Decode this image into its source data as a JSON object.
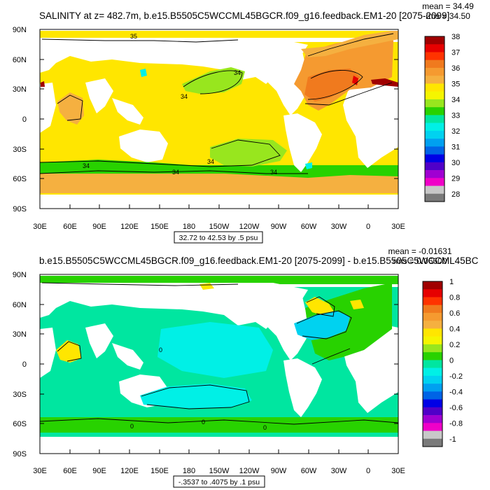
{
  "panels": [
    {
      "title": "SALINITY at z= 482.7m, b.e15.B5505C5WCCML45BGCR.f09_g16.feedback.EM1-20 [2075-2099]",
      "mean_label": "mean = 34.49",
      "rms_label": "rms = 34.50",
      "range_label": "32.72 to 42.53 by .5 psu",
      "colorbar": {
        "labels": [
          "38",
          "37",
          "36",
          "35",
          "34",
          "33",
          "32",
          "31",
          "30",
          "29",
          "28"
        ],
        "colors": [
          "#a00000",
          "#e60000",
          "#ff3300",
          "#f07a1e",
          "#f59a30",
          "#f5b040",
          "#ffe600",
          "#f5f500",
          "#98e61e",
          "#28d200",
          "#00e6a0",
          "#00f0e6",
          "#00d2f0",
          "#00a0f0",
          "#0064e6",
          "#0000e6",
          "#5000c8",
          "#a000d2",
          "#f000c8",
          "#c8c8c8",
          "#7a7a7a"
        ]
      },
      "contour_labels": [
        "35",
        "34",
        "34",
        "34",
        "34",
        "34",
        "34"
      ]
    },
    {
      "title": "b.e15.B5505C5WCCML45BGCR.f09_g16.feedback.EM1-20 [2075-2099] - b.e15.B5505C5WCCML45BC",
      "mean_label": "mean = -0.01631",
      "rms_label": "rms = 0.06600",
      "range_label": "-.3537 to .4075 by .1 psu",
      "colorbar": {
        "labels": [
          "1",
          "0.8",
          "0.6",
          "0.4",
          "0.2",
          "0",
          "-0.2",
          "-0.4",
          "-0.6",
          "-0.8",
          "-1"
        ],
        "colors": [
          "#a00000",
          "#e60000",
          "#ff3300",
          "#f07a1e",
          "#f59a30",
          "#f5b040",
          "#ffe600",
          "#f5f500",
          "#98e61e",
          "#28d200",
          "#00e6a0",
          "#00f0e6",
          "#00d2f0",
          "#00a0f0",
          "#0064e6",
          "#0000e6",
          "#5000c8",
          "#a000d2",
          "#f000c8",
          "#c8c8c8",
          "#7a7a7a"
        ]
      },
      "contour_labels": [
        "0",
        "0",
        "0",
        "0"
      ]
    }
  ],
  "lat_labels": [
    "90N",
    "60N",
    "30N",
    "0",
    "30S",
    "60S",
    "90S"
  ],
  "lon_labels": [
    "30E",
    "60E",
    "90E",
    "120E",
    "150E",
    "180",
    "150W",
    "120W",
    "90W",
    "60W",
    "30W",
    "0",
    "30E"
  ]
}
